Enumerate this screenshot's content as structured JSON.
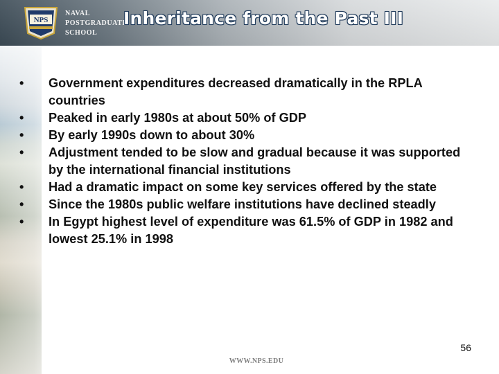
{
  "header": {
    "logo_lines": [
      "NAVAL",
      "POSTGRADUATE",
      "SCHOOL"
    ],
    "logo_badge_text": "NPS",
    "title": "Inheritance from the Past III"
  },
  "bullet_symbol": "•",
  "bullets": [
    "Government expenditures decreased dramatically in the RPLA countries",
    "Peaked in early 1980s at about 50% of GDP",
    "By early 1990s down to about 30%",
    "Adjustment tended to be slow and gradual because it was supported by the international financial institutions",
    "Had a dramatic impact on some key services offered by the state",
    "Since the 1980s public welfare institutions have declined steadly",
    "In Egypt highest level of expenditure was 61.5% of GDP in 1982 and lowest 25.1% in 1998"
  ],
  "footer": {
    "page_number": "56",
    "url": "WWW.NPS.EDU"
  },
  "colors": {
    "title_text": "#ffffff",
    "title_outline": "#1f3a5a",
    "body_text": "#111111",
    "header_dark": "#3b4a55",
    "footer_url": "#7d7d7d"
  }
}
